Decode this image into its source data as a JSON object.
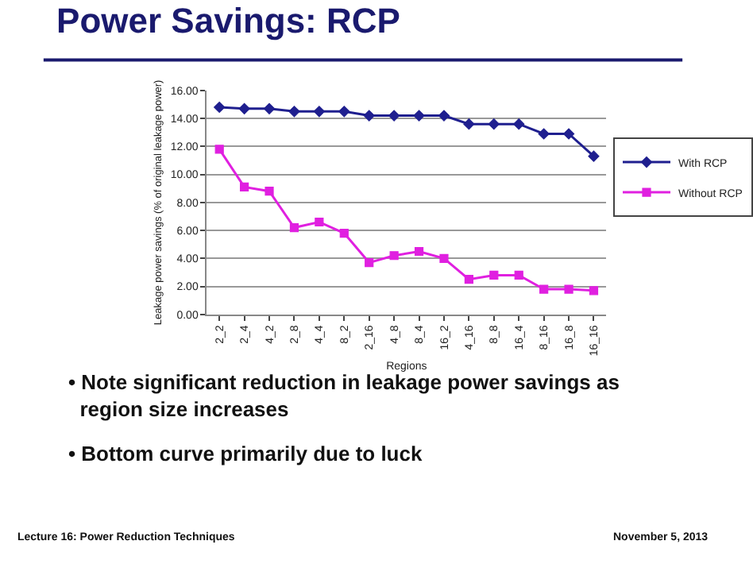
{
  "chart_data": {
    "type": "line",
    "title": "Power Savings: RCP",
    "xlabel": "Regions",
    "ylabel": "Leakage power savings (% of original leakage power)",
    "categories": [
      "2_2",
      "2_4",
      "4_2",
      "2_8",
      "4_4",
      "8_2",
      "2_16",
      "4_8",
      "8_4",
      "16_2",
      "4_16",
      "8_8",
      "16_4",
      "8_16",
      "16_8",
      "16_16"
    ],
    "series": [
      {
        "name": "With RCP",
        "color": "#1f1f8f",
        "marker": "diamond",
        "values": [
          14.8,
          14.7,
          14.7,
          14.5,
          14.5,
          14.5,
          14.2,
          14.2,
          14.2,
          14.2,
          13.6,
          13.6,
          13.6,
          12.9,
          12.9,
          11.3
        ]
      },
      {
        "name": "Without RCP",
        "color": "#e020e0",
        "marker": "square",
        "values": [
          11.8,
          9.1,
          8.8,
          6.2,
          6.6,
          5.8,
          3.7,
          4.2,
          4.5,
          4.0,
          2.5,
          2.8,
          2.8,
          1.8,
          1.8,
          1.7
        ]
      }
    ],
    "ylim": [
      0,
      16
    ],
    "yticks": [
      {
        "value": 0,
        "label": "0.00"
      },
      {
        "value": 2,
        "label": "2.00"
      },
      {
        "value": 4,
        "label": "4.00"
      },
      {
        "value": 6,
        "label": "6.00"
      },
      {
        "value": 8,
        "label": "8.00"
      },
      {
        "value": 10,
        "label": "10.00"
      },
      {
        "value": 12,
        "label": "12.00"
      },
      {
        "value": 14,
        "label": "14.00"
      },
      {
        "value": 16,
        "label": "16.00"
      }
    ],
    "grid": "y",
    "legend": "right",
    "line_style": "solid",
    "annotations": [
      "• Note significant reduction in leakage power savings as region size increases",
      "• Bottom curve primarily due to luck",
      "Lecture 16: Power Reduction Techniques",
      "November 5, 2013"
    ]
  }
}
